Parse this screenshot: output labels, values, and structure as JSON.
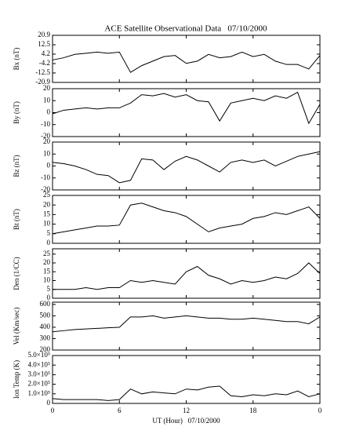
{
  "chart_data": [
    {
      "type": "line",
      "title": "ACE Satellite Observational Data   07/10/2000",
      "ylabel": "Bx (nT)",
      "color": "#000000",
      "xlim": [
        0,
        24
      ],
      "ylim": [
        -20.9,
        20.9
      ],
      "yticks": [
        -20.9,
        -12.5,
        -4.2,
        4.2,
        12.5,
        20.9
      ],
      "x": [
        0,
        1,
        2,
        3,
        4,
        5,
        6,
        7,
        8,
        9,
        10,
        11,
        12,
        13,
        14,
        15,
        16,
        17,
        18,
        19,
        20,
        21,
        22,
        23,
        24
      ],
      "values": [
        -1,
        1,
        4,
        5,
        6,
        5,
        6,
        -12,
        -6,
        -2,
        2,
        3,
        -4,
        -2,
        4,
        1,
        2,
        6,
        2,
        4,
        -2,
        -5,
        -5,
        -9,
        3
      ]
    },
    {
      "type": "line",
      "ylabel": "By (nT)",
      "color": "#000000",
      "xlim": [
        0,
        24
      ],
      "ylim": [
        -20,
        20
      ],
      "yticks": [
        -20,
        -10,
        0,
        10,
        20
      ],
      "x": [
        0,
        1,
        2,
        3,
        4,
        5,
        6,
        7,
        8,
        9,
        10,
        11,
        12,
        13,
        14,
        15,
        16,
        17,
        18,
        19,
        20,
        21,
        22,
        23,
        24
      ],
      "values": [
        -1,
        2,
        3,
        4,
        3,
        4,
        4,
        8,
        15,
        14,
        16,
        13,
        15,
        10,
        9,
        -7,
        8,
        10,
        12,
        10,
        14,
        12,
        17,
        -9,
        7
      ]
    },
    {
      "type": "line",
      "ylabel": "Bz (nT)",
      "color": "#000000",
      "xlim": [
        0,
        24
      ],
      "ylim": [
        -20,
        20
      ],
      "yticks": [
        -20,
        -10,
        0,
        10,
        20
      ],
      "x": [
        0,
        1,
        2,
        3,
        4,
        5,
        6,
        7,
        8,
        9,
        10,
        11,
        12,
        13,
        14,
        15,
        16,
        17,
        18,
        19,
        20,
        21,
        22,
        23,
        24
      ],
      "values": [
        3,
        2,
        0,
        -3,
        -7,
        -8,
        -14,
        -12,
        6,
        5,
        -3,
        4,
        8,
        5,
        0,
        -5,
        3,
        5,
        3,
        5,
        0,
        4,
        8,
        10,
        12
      ]
    },
    {
      "type": "line",
      "ylabel": "Bt (nT)",
      "color": "#000000",
      "xlim": [
        0,
        24
      ],
      "ylim": [
        0,
        25
      ],
      "yticks": [
        0,
        5,
        10,
        15,
        20,
        25
      ],
      "x": [
        0,
        1,
        2,
        3,
        4,
        5,
        6,
        7,
        8,
        9,
        10,
        11,
        12,
        13,
        14,
        15,
        16,
        17,
        18,
        19,
        20,
        21,
        22,
        23,
        24
      ],
      "values": [
        5,
        6,
        7,
        8,
        9,
        9,
        9.5,
        20,
        21,
        19,
        17,
        16,
        14,
        10,
        6,
        8,
        9,
        10,
        13,
        14,
        16,
        15,
        17,
        19,
        13
      ]
    },
    {
      "type": "line",
      "ylabel": "Den (1/CC)",
      "color": "#000000",
      "xlim": [
        0,
        24
      ],
      "ylim": [
        0,
        28
      ],
      "yticks": [
        0,
        5,
        10,
        15,
        20,
        25
      ],
      "x": [
        0,
        1,
        2,
        3,
        4,
        5,
        6,
        7,
        8,
        9,
        10,
        11,
        12,
        13,
        14,
        15,
        16,
        17,
        18,
        19,
        20,
        21,
        22,
        23,
        24
      ],
      "values": [
        5,
        5,
        5,
        6,
        5,
        6,
        6,
        10,
        9,
        10,
        9,
        8,
        15,
        18,
        13,
        11,
        8,
        10,
        9,
        10,
        12,
        11,
        14,
        20,
        14
      ]
    },
    {
      "type": "line",
      "ylabel": "Vel (Km/sec)",
      "color": "#000000",
      "xlim": [
        0,
        24
      ],
      "ylim": [
        200,
        620
      ],
      "yticks": [
        200,
        300,
        400,
        500,
        600
      ],
      "x": [
        0,
        1,
        2,
        3,
        4,
        5,
        6,
        7,
        8,
        9,
        10,
        11,
        12,
        13,
        14,
        15,
        16,
        17,
        18,
        19,
        20,
        21,
        22,
        23,
        24
      ],
      "values": [
        360,
        370,
        380,
        385,
        390,
        395,
        400,
        490,
        490,
        500,
        480,
        490,
        500,
        490,
        480,
        480,
        470,
        470,
        480,
        470,
        460,
        450,
        450,
        430,
        490
      ]
    },
    {
      "type": "line",
      "ylabel": "Ion Temp (K)",
      "xlabel": "UT (Hour)   07/10/2000",
      "color": "#000000",
      "xlim": [
        0,
        24
      ],
      "xticks": [
        0,
        6,
        12,
        18,
        {
          "value": 24,
          "label": "0"
        }
      ],
      "ylim": [
        0,
        500000
      ],
      "yticks": [
        0,
        {
          "value": 100000,
          "label": "1.0×10⁵"
        },
        {
          "value": 200000,
          "label": "2.0×10⁵"
        },
        {
          "value": 300000,
          "label": "3.0×10⁵"
        },
        {
          "value": 400000,
          "label": "4.0×10⁵"
        },
        {
          "value": 500000,
          "label": "5.0×10⁵"
        }
      ],
      "x": [
        0,
        1,
        2,
        3,
        4,
        5,
        6,
        7,
        8,
        9,
        10,
        11,
        12,
        13,
        14,
        15,
        16,
        17,
        18,
        19,
        20,
        21,
        22,
        23,
        24
      ],
      "values": [
        50000,
        40000,
        40000,
        40000,
        40000,
        30000,
        40000,
        150000,
        100000,
        120000,
        110000,
        100000,
        150000,
        140000,
        170000,
        180000,
        80000,
        70000,
        90000,
        80000,
        100000,
        90000,
        130000,
        70000,
        100000
      ]
    }
  ]
}
